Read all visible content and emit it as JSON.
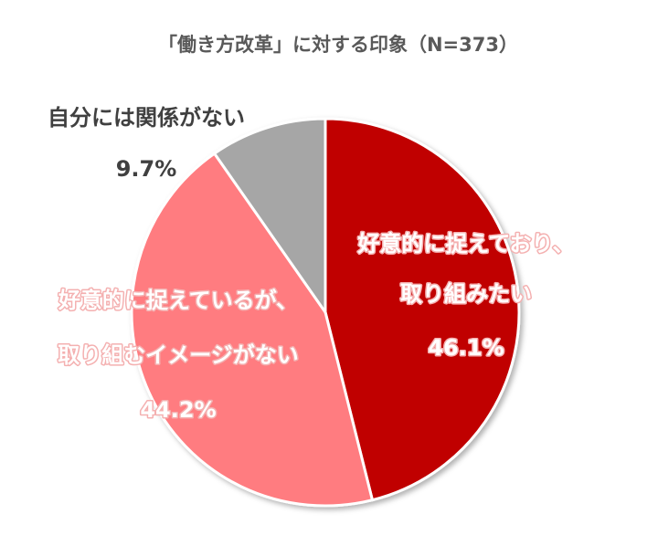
{
  "chart_data": {
    "type": "pie",
    "title": "「働き方改革」に対する印象（N=373）",
    "categories": [
      [
        "好意的に捉えており、",
        "取り組みたい"
      ],
      [
        "好意的に捉えているが、",
        "取り組むイメージがない"
      ],
      [
        "自分には関係がない"
      ]
    ],
    "values": [
      46.1,
      44.2,
      9.7
    ],
    "value_labels": [
      "46.1%",
      "44.2%",
      "9.7%"
    ],
    "colors": [
      "#c00000",
      "#ff7c80",
      "#a6a6a6"
    ]
  }
}
